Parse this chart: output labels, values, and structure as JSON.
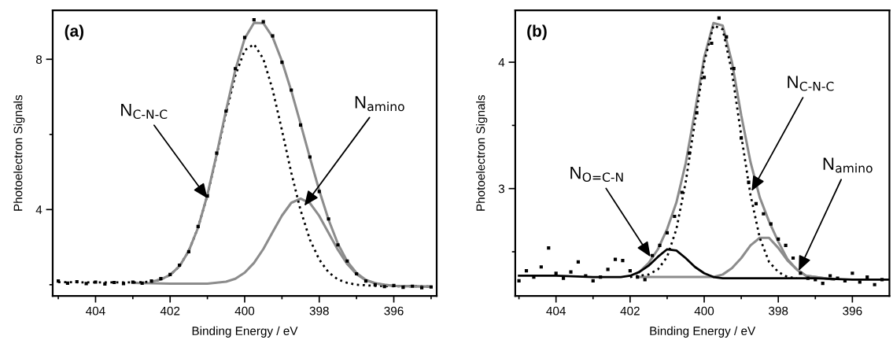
{
  "chart_data": [
    {
      "type": "line",
      "title": "(a)",
      "xlabel": "Binding Energy / eV",
      "ylabel": "Photoelectron Signals",
      "xlim": [
        405.15,
        394.85
      ],
      "ylim": [
        1.7,
        9.3
      ],
      "xticks": [
        {
          "value": 405,
          "label": null
        },
        404,
        {
          "value": 403,
          "label": null
        },
        402,
        {
          "value": 401,
          "label": null
        },
        400,
        {
          "value": 399,
          "label": null
        },
        398,
        {
          "value": 397,
          "label": null
        },
        396,
        {
          "value": 395,
          "label": null
        }
      ],
      "yticks": [
        {
          "value": 2,
          "label": null
        },
        4,
        {
          "value": 6,
          "label": null
        },
        8
      ],
      "grid": false,
      "legend": false,
      "annotations": [
        {
          "text": "N$_{C-N-C}$",
          "x": 401.0,
          "y": 4.3
        },
        {
          "text": "N$_{amino}$",
          "x": 398.4,
          "y": 4.1
        }
      ],
      "series": [
        {
          "line_style": "solid",
          "marker": "none",
          "color": "#8c8c8c",
          "x": [
            403,
            402.5,
            402,
            401.5,
            401,
            400.5,
            400.25,
            400,
            399.75,
            399.5,
            399.25,
            399,
            398.75,
            398.5,
            398.25,
            398,
            397.75,
            397.5,
            397.25,
            397,
            396.75,
            396.5,
            396.25,
            396,
            395.5,
            395
          ],
          "values": [
            2.05,
            2.04,
            2.03,
            2.03,
            2.03,
            2.08,
            2.16,
            2.32,
            2.58,
            2.95,
            3.4,
            3.84,
            4.18,
            4.29,
            4.17,
            3.83,
            3.38,
            2.93,
            2.55,
            2.28,
            2.12,
            2.04,
            2.0,
            1.97,
            1.96,
            1.95
          ]
        },
        {
          "line_style": "dotted",
          "marker": "none",
          "color": "#000000",
          "x": [
            405,
            404,
            403,
            402.5,
            402.25,
            402,
            401.75,
            401.5,
            401.25,
            401,
            400.75,
            400.5,
            400.25,
            400,
            399.75,
            399.5,
            399.25,
            399,
            398.75,
            398.5,
            398.25,
            398,
            397.75,
            397.5,
            397.25,
            397,
            396.5,
            396,
            395.5,
            395
          ],
          "values": [
            2.07,
            2.06,
            2.06,
            2.08,
            2.14,
            2.26,
            2.49,
            2.9,
            3.52,
            4.38,
            5.45,
            6.57,
            7.57,
            8.24,
            8.4,
            8.01,
            7.19,
            6.11,
            4.98,
            3.98,
            3.2,
            2.67,
            2.33,
            2.14,
            2.05,
            2.0,
            1.97,
            1.96,
            1.96,
            1.95
          ]
        },
        {
          "line_style": "solid",
          "marker": "none",
          "color": "#8c8c8c",
          "x": [
            402.5,
            402.25,
            402,
            401.75,
            401.5,
            401.25,
            401,
            400.75,
            400.5,
            400.25,
            400,
            399.75,
            399.5,
            399.25,
            399,
            398.75,
            398.5,
            398.25,
            398,
            397.75,
            397.5,
            397.25,
            397,
            396.75,
            396.5,
            396.25,
            396,
            395.75,
            395.5,
            395.25,
            395
          ],
          "values": [
            2.08,
            2.14,
            2.26,
            2.49,
            2.9,
            3.52,
            4.39,
            5.48,
            6.64,
            7.72,
            8.55,
            8.97,
            8.96,
            8.59,
            7.95,
            7.16,
            6.28,
            5.38,
            4.51,
            3.73,
            3.09,
            2.62,
            2.31,
            2.13,
            2.04,
            1.99,
            1.97,
            1.96,
            1.96,
            1.95,
            1.95
          ]
        },
        {
          "type": "scatter",
          "marker": "square",
          "color": "#000000",
          "x": [
            405,
            404.75,
            404.5,
            404.25,
            404,
            403.75,
            403.5,
            403.25,
            403,
            402.75,
            402.5,
            402.25,
            402,
            401.75,
            401.5,
            401.25,
            401,
            400.75,
            400.5,
            400.25,
            400,
            399.75,
            399.5,
            399.25,
            399,
            398.75,
            398.5,
            398.25,
            398,
            397.75,
            397.5,
            397.25,
            397,
            396.75,
            396.5,
            396.25,
            396,
            395.75,
            395.5,
            395.25,
            395
          ],
          "values": [
            2.1,
            2.04,
            2.08,
            2.03,
            2.07,
            2.02,
            2.06,
            2.03,
            2.07,
            2.04,
            2.1,
            2.16,
            2.27,
            2.52,
            2.88,
            3.55,
            4.36,
            5.5,
            6.62,
            7.75,
            8.58,
            9.05,
            9.0,
            8.62,
            7.92,
            7.18,
            6.25,
            5.4,
            4.48,
            3.75,
            3.06,
            2.63,
            2.29,
            2.1,
            2.0,
            1.95,
            1.98,
            1.93,
            1.96,
            1.92,
            1.94
          ]
        }
      ]
    },
    {
      "type": "line",
      "title": "(b)",
      "xlabel": "Binding Energy / eV",
      "ylabel": "Photoelectron Signals",
      "xlim": [
        405.1,
        395.0
      ],
      "ylim": [
        2.15,
        4.41
      ],
      "xticks": [
        {
          "value": 405,
          "label": null
        },
        404,
        {
          "value": 403,
          "label": null
        },
        402,
        {
          "value": 401,
          "label": null
        },
        400,
        {
          "value": 399,
          "label": null
        },
        398,
        {
          "value": 397,
          "label": null
        },
        396
      ],
      "yticks": [
        {
          "value": 2.5,
          "label": null
        },
        3,
        {
          "value": 3.5,
          "label": null
        },
        4
      ],
      "grid": false,
      "legend": false,
      "annotations": [
        {
          "text": "N$_{O=C-N}$",
          "x": 401.45,
          "y": 2.46
        },
        {
          "text": "N$_{C-N-C}$",
          "x": 398.72,
          "y": 2.98
        },
        {
          "text": "N$_{amino}$",
          "x": 397.45,
          "y": 2.35
        }
      ],
      "series": [
        {
          "line_style": "solid",
          "marker": "none",
          "color": "#8c8c8c",
          "x": [
            401.75,
            401,
            400.5,
            400,
            399.75,
            399.5,
            399.25,
            399,
            398.75,
            398.5,
            398.25,
            398,
            397.75,
            397.5,
            397.25,
            397,
            396.5
          ],
          "values": [
            2.3,
            2.3,
            2.3,
            2.3,
            2.3,
            2.32,
            2.37,
            2.45,
            2.55,
            2.61,
            2.61,
            2.53,
            2.43,
            2.36,
            2.31,
            2.3,
            2.28
          ]
        },
        {
          "line_style": "solid",
          "marker": "none",
          "color": "#8c8c8c",
          "x": [
            401.75,
            401.5,
            401.25,
            401,
            400.75,
            400.5,
            400.25,
            400,
            399.75,
            399.5,
            399.25,
            399,
            398.75,
            398.5,
            398.25,
            398,
            397.75,
            397.5,
            397.25,
            397,
            396.5
          ],
          "values": [
            2.34,
            2.41,
            2.52,
            2.68,
            2.89,
            3.2,
            3.61,
            4.04,
            4.31,
            4.29,
            4.0,
            3.58,
            3.21,
            2.93,
            2.74,
            2.58,
            2.44,
            2.36,
            2.31,
            2.3,
            2.28
          ]
        },
        {
          "line_style": "dotted",
          "marker": "none",
          "color": "#000000",
          "x": [
            402,
            401.5,
            401.25,
            401,
            400.75,
            400.5,
            400.25,
            400,
            399.75,
            399.5,
            399.25,
            399,
            398.75,
            398.5,
            398.25,
            398,
            397.75,
            397.5
          ],
          "values": [
            2.3,
            2.32,
            2.36,
            2.46,
            2.68,
            3.05,
            3.53,
            4.0,
            4.29,
            4.26,
            3.92,
            3.42,
            2.95,
            2.61,
            2.42,
            2.34,
            2.3,
            2.29
          ]
        },
        {
          "line_style": "solid",
          "marker": "none",
          "color": "#000000",
          "x": [
            405,
            404,
            403,
            402.5,
            402.25,
            402,
            401.75,
            401.5,
            401.25,
            401,
            400.75,
            400.5,
            400.25,
            400,
            399.75,
            399.5,
            398,
            397,
            396,
            395
          ],
          "values": [
            2.31,
            2.31,
            2.3,
            2.3,
            2.3,
            2.31,
            2.34,
            2.39,
            2.46,
            2.52,
            2.51,
            2.45,
            2.38,
            2.33,
            2.3,
            2.29,
            2.29,
            2.29,
            2.28,
            2.28
          ]
        },
        {
          "type": "scatter",
          "marker": "square",
          "color": "#000000",
          "x": [
            405,
            404.8,
            404.6,
            404.4,
            404.2,
            404,
            403.8,
            403.6,
            403.4,
            403.2,
            403,
            402.8,
            402.6,
            402.4,
            402.2,
            402,
            401.8,
            401.6,
            401.4,
            401.2,
            401,
            400.8,
            400.6,
            400.4,
            400.2,
            400,
            399.8,
            399.6,
            399.4,
            399.2,
            399,
            398.8,
            398.6,
            398.4,
            398.2,
            398,
            397.8,
            397.6,
            397.4,
            397.2,
            397,
            396.8,
            396.6,
            396.4,
            396.2,
            396,
            395.8,
            395.6,
            395.4,
            395.2
          ],
          "values": [
            2.27,
            2.35,
            2.3,
            2.38,
            2.53,
            2.33,
            2.29,
            2.34,
            2.42,
            2.31,
            2.27,
            2.3,
            2.36,
            2.44,
            2.43,
            2.35,
            2.3,
            2.28,
            2.47,
            2.55,
            2.65,
            2.78,
            2.97,
            3.28,
            3.6,
            3.88,
            4.15,
            4.35,
            4.2,
            3.95,
            3.4,
            3.05,
            2.88,
            2.8,
            2.72,
            2.6,
            2.55,
            2.45,
            2.33,
            2.29,
            2.28,
            2.25,
            2.31,
            2.29,
            2.27,
            2.33,
            2.26,
            2.3,
            2.24,
            2.28
          ]
        }
      ]
    }
  ]
}
